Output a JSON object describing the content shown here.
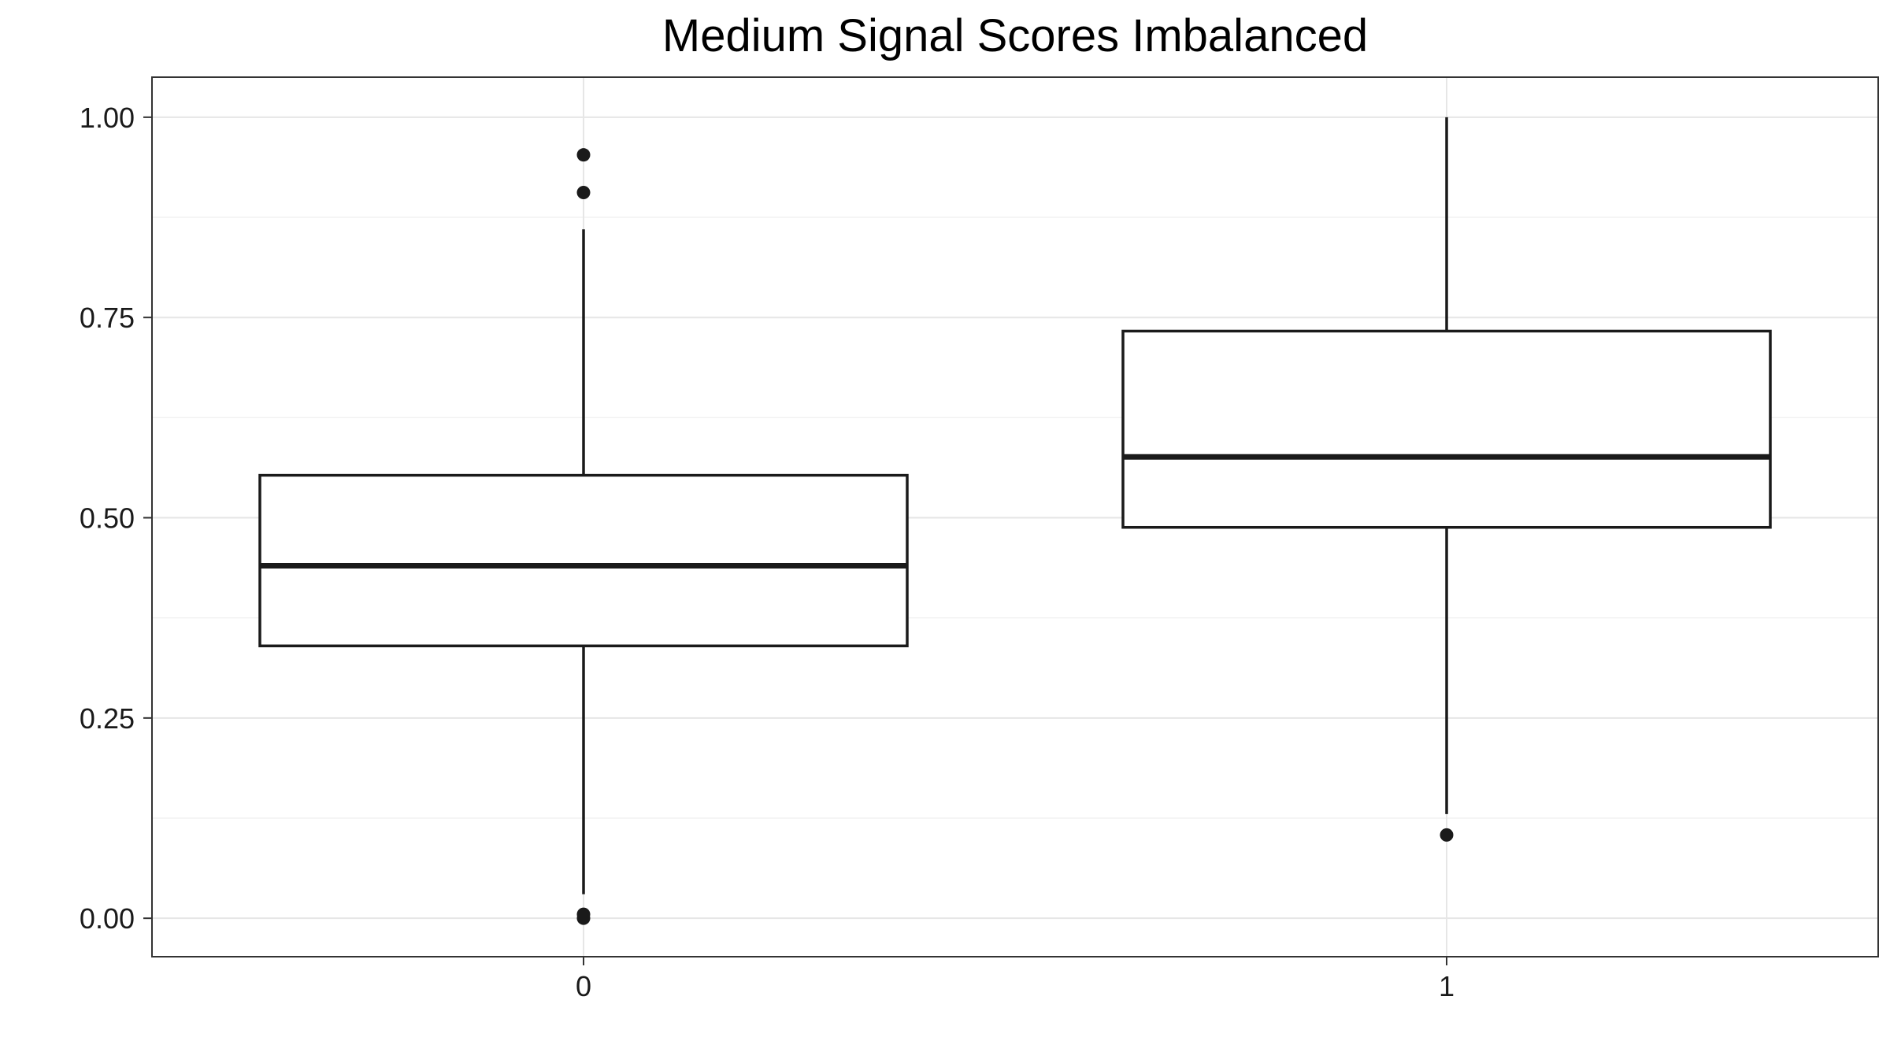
{
  "chart_data": {
    "type": "boxplot",
    "title": "Medium Signal Scores Imbalanced",
    "xlabel": "",
    "ylabel": "",
    "ylim": [
      -0.048,
      1.05
    ],
    "grid": true,
    "categories": [
      "0",
      "1"
    ],
    "y_ticks": [
      "0.00",
      "0.25",
      "0.50",
      "0.75",
      "1.00"
    ],
    "y_tick_values": [
      0,
      0.25,
      0.5,
      0.75,
      1.0
    ],
    "y_minor_tick_values": [
      0.125,
      0.375,
      0.625,
      0.875
    ],
    "boxes": [
      {
        "category": "0",
        "whisker_low": 0.03,
        "q1": 0.34,
        "median": 0.44,
        "q3": 0.553,
        "whisker_high": 0.86,
        "outliers": [
          0.953,
          0.906,
          0.005,
          0.0
        ]
      },
      {
        "category": "1",
        "whisker_low": 0.13,
        "q1": 0.488,
        "median": 0.576,
        "q3": 0.733,
        "whisker_high": 1.0,
        "outliers": [
          0.104
        ]
      }
    ],
    "colors": {
      "box_line": "#1a1a1a",
      "box_fill": "#ffffff",
      "grid": "#e6e6e6",
      "panel_border": "#333333"
    }
  }
}
